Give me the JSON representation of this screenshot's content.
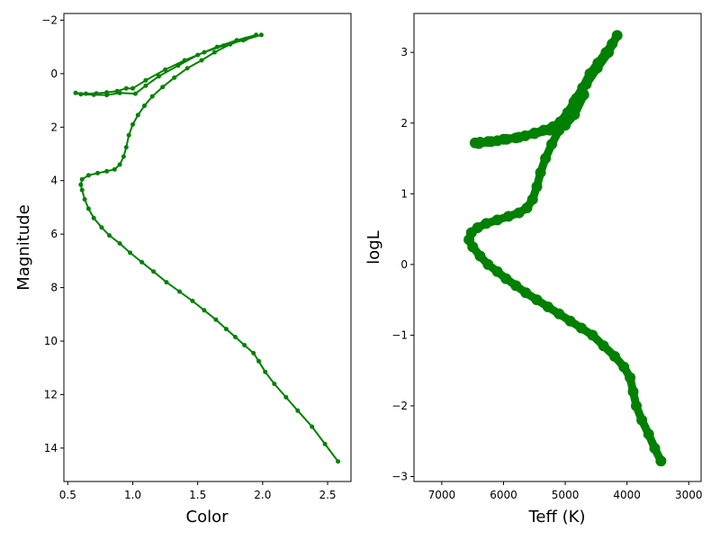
{
  "chart_data": [
    {
      "type": "scatter",
      "xlabel": "Color",
      "ylabel": "Magnitude",
      "xlim": [
        0.47,
        2.68
      ],
      "ylim": [
        15.25,
        -2.25
      ],
      "y_inverted": true,
      "grid": false,
      "marker_color": "#008000",
      "xticks": [
        "0.5",
        "1.0",
        "1.5",
        "2.0",
        "2.5"
      ],
      "yticks": [
        "−2",
        "0",
        "2",
        "4",
        "6",
        "8",
        "10",
        "12",
        "14"
      ],
      "series": [
        {
          "points": [
            [
              2.58,
              14.5
            ],
            [
              2.48,
              13.85
            ],
            [
              2.38,
              13.2
            ],
            [
              2.27,
              12.6
            ],
            [
              2.18,
              12.1
            ],
            [
              2.09,
              11.6
            ],
            [
              2.02,
              11.15
            ],
            [
              1.97,
              10.75
            ],
            [
              1.93,
              10.45
            ],
            [
              1.86,
              10.15
            ],
            [
              1.79,
              9.85
            ],
            [
              1.72,
              9.55
            ],
            [
              1.64,
              9.2
            ],
            [
              1.55,
              8.85
            ],
            [
              1.46,
              8.5
            ],
            [
              1.36,
              8.15
            ],
            [
              1.26,
              7.8
            ],
            [
              1.16,
              7.4
            ],
            [
              1.07,
              7.05
            ],
            [
              0.98,
              6.7
            ],
            [
              0.9,
              6.35
            ],
            [
              0.82,
              6.05
            ],
            [
              0.76,
              5.75
            ],
            [
              0.7,
              5.4
            ],
            [
              0.66,
              5.05
            ],
            [
              0.63,
              4.7
            ],
            [
              0.61,
              4.35
            ],
            [
              0.6,
              4.15
            ],
            [
              0.61,
              3.95
            ],
            [
              0.66,
              3.8
            ],
            [
              0.73,
              3.72
            ],
            [
              0.8,
              3.65
            ],
            [
              0.86,
              3.58
            ],
            [
              0.9,
              3.4
            ],
            [
              0.93,
              3.1
            ],
            [
              0.95,
              2.75
            ],
            [
              0.97,
              2.3
            ],
            [
              1.0,
              1.9
            ],
            [
              1.04,
              1.55
            ],
            [
              1.09,
              1.2
            ],
            [
              1.15,
              0.85
            ],
            [
              1.23,
              0.5
            ],
            [
              1.32,
              0.15
            ],
            [
              1.42,
              -0.2
            ],
            [
              1.53,
              -0.5
            ],
            [
              1.63,
              -0.8
            ],
            [
              1.75,
              -1.1
            ],
            [
              1.87,
              -1.3
            ],
            [
              1.99,
              -1.45
            ],
            [
              1.85,
              -1.25
            ],
            [
              1.7,
              -1.05
            ],
            [
              1.55,
              -0.8
            ],
            [
              1.4,
              -0.5
            ],
            [
              1.25,
              -0.15
            ],
            [
              1.1,
              0.25
            ],
            [
              1.0,
              0.55
            ],
            [
              0.95,
              0.55
            ],
            [
              0.88,
              0.65
            ],
            [
              0.8,
              0.7
            ],
            [
              0.72,
              0.74
            ],
            [
              0.64,
              0.75
            ],
            [
              0.56,
              0.72
            ],
            [
              0.6,
              0.77
            ],
            [
              0.7,
              0.79
            ],
            [
              0.8,
              0.8
            ],
            [
              0.9,
              0.72
            ],
            [
              1.02,
              0.75
            ],
            [
              1.1,
              0.45
            ],
            [
              1.2,
              0.1
            ],
            [
              1.35,
              -0.3
            ],
            [
              1.5,
              -0.7
            ],
            [
              1.65,
              -1.0
            ],
            [
              1.8,
              -1.25
            ],
            [
              1.95,
              -1.45
            ]
          ]
        }
      ]
    },
    {
      "type": "scatter",
      "xlabel": "Teff (K)",
      "ylabel": "logL",
      "xlim": [
        7450,
        2800
      ],
      "ylim": [
        -3.07,
        3.55
      ],
      "x_inverted": true,
      "grid": false,
      "marker_color": "#008000",
      "xticks": [
        "7000",
        "6000",
        "5000",
        "4000",
        "3000"
      ],
      "yticks": [
        "−3",
        "−2",
        "−1",
        "0",
        "1",
        "2",
        "3"
      ],
      "series": [
        {
          "points": [
            [
              3450,
              -2.78
            ],
            [
              3550,
              -2.6
            ],
            [
              3650,
              -2.4
            ],
            [
              3760,
              -2.2
            ],
            [
              3850,
              -2.0
            ],
            [
              3900,
              -1.8
            ],
            [
              3950,
              -1.6
            ],
            [
              4050,
              -1.45
            ],
            [
              4200,
              -1.3
            ],
            [
              4380,
              -1.15
            ],
            [
              4560,
              -1.0
            ],
            [
              4740,
              -0.9
            ],
            [
              4920,
              -0.8
            ],
            [
              5100,
              -0.7
            ],
            [
              5280,
              -0.6
            ],
            [
              5460,
              -0.5
            ],
            [
              5640,
              -0.4
            ],
            [
              5800,
              -0.3
            ],
            [
              5960,
              -0.2
            ],
            [
              6100,
              -0.1
            ],
            [
              6250,
              0.0
            ],
            [
              6380,
              0.12
            ],
            [
              6500,
              0.25
            ],
            [
              6560,
              0.35
            ],
            [
              6520,
              0.45
            ],
            [
              6420,
              0.52
            ],
            [
              6280,
              0.58
            ],
            [
              6100,
              0.63
            ],
            [
              5920,
              0.68
            ],
            [
              5750,
              0.73
            ],
            [
              5620,
              0.8
            ],
            [
              5530,
              0.92
            ],
            [
              5460,
              1.1
            ],
            [
              5400,
              1.3
            ],
            [
              5320,
              1.5
            ],
            [
              5220,
              1.7
            ],
            [
              5100,
              1.9
            ],
            [
              4980,
              2.1
            ],
            [
              4860,
              2.3
            ],
            [
              4720,
              2.5
            ],
            [
              4600,
              2.7
            ],
            [
              4470,
              2.85
            ],
            [
              4340,
              3.0
            ],
            [
              4240,
              3.12
            ],
            [
              4160,
              3.24
            ],
            [
              4300,
              3.0
            ],
            [
              4480,
              2.78
            ],
            [
              4660,
              2.55
            ],
            [
              4820,
              2.35
            ],
            [
              4960,
              2.15
            ],
            [
              5080,
              2.02
            ],
            [
              5200,
              1.95
            ],
            [
              5350,
              1.9
            ],
            [
              5500,
              1.86
            ],
            [
              5650,
              1.82
            ],
            [
              5800,
              1.79
            ],
            [
              5950,
              1.77
            ],
            [
              6100,
              1.75
            ],
            [
              6250,
              1.74
            ],
            [
              6380,
              1.73
            ],
            [
              6460,
              1.72
            ],
            [
              6400,
              1.71
            ],
            [
              6200,
              1.74
            ],
            [
              6000,
              1.77
            ],
            [
              5750,
              1.8
            ],
            [
              5500,
              1.85
            ],
            [
              5250,
              1.9
            ],
            [
              5000,
              1.97
            ],
            [
              4850,
              2.12
            ],
            [
              4700,
              2.4
            ]
          ]
        }
      ]
    }
  ]
}
